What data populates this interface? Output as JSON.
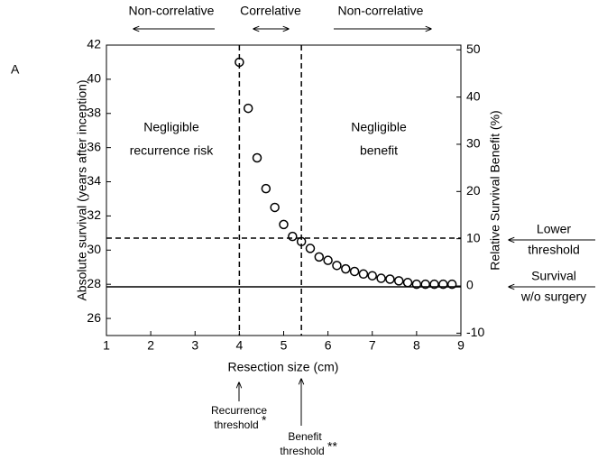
{
  "chart_data": {
    "type": "scatter",
    "panel_label": "A",
    "xlabel": "Resection size (cm)",
    "ylabel": "Absolute survival (years after inception)",
    "y2label": "Relative Survival Benefit (%)",
    "xlim": [
      1,
      9
    ],
    "xticks": [
      1,
      2,
      3,
      4,
      5,
      6,
      7,
      8,
      9
    ],
    "ylim": [
      25,
      42
    ],
    "yticks": [
      26,
      28,
      30,
      32,
      34,
      36,
      38,
      40,
      42
    ],
    "y2lim": [
      -10.5,
      51
    ],
    "y2ticks": [
      -10,
      0,
      10,
      20,
      30,
      40,
      50
    ],
    "series": [
      {
        "color": "#000000",
        "marker": "open-circle",
        "x": [
          4.0,
          4.2,
          4.4,
          4.6,
          4.8,
          5.0,
          5.2,
          5.4,
          5.6,
          5.8,
          6.0,
          6.2,
          6.4,
          6.6,
          6.8,
          7.0,
          7.2,
          7.4,
          7.6,
          7.8,
          8.0,
          8.2,
          8.4,
          8.6,
          8.8
        ],
        "values": [
          41.0,
          38.3,
          35.4,
          33.6,
          32.5,
          31.5,
          30.8,
          30.5,
          30.1,
          29.6,
          29.4,
          29.1,
          28.9,
          28.75,
          28.6,
          28.5,
          28.35,
          28.3,
          28.2,
          28.1,
          28.0,
          28.0,
          28.0,
          28.0,
          28.0
        ]
      }
    ],
    "vlines": [
      4,
      5.4
    ],
    "hlines": [
      30.7,
      27.85
    ],
    "top_labels": [
      "Non-correlative",
      "Correlative",
      "Non-correlative"
    ],
    "region_labels": [
      [
        "Negligible",
        "recurrence risk"
      ],
      [
        "Negligible",
        "benefit"
      ]
    ],
    "right_labels": [
      [
        "Lower",
        "threshold"
      ],
      [
        "Survival",
        "w/o surgery"
      ]
    ],
    "bottom_labels": [
      [
        "Recurrence",
        "threshold",
        "*"
      ],
      [
        "Benefit",
        "threshold",
        "**"
      ]
    ]
  }
}
